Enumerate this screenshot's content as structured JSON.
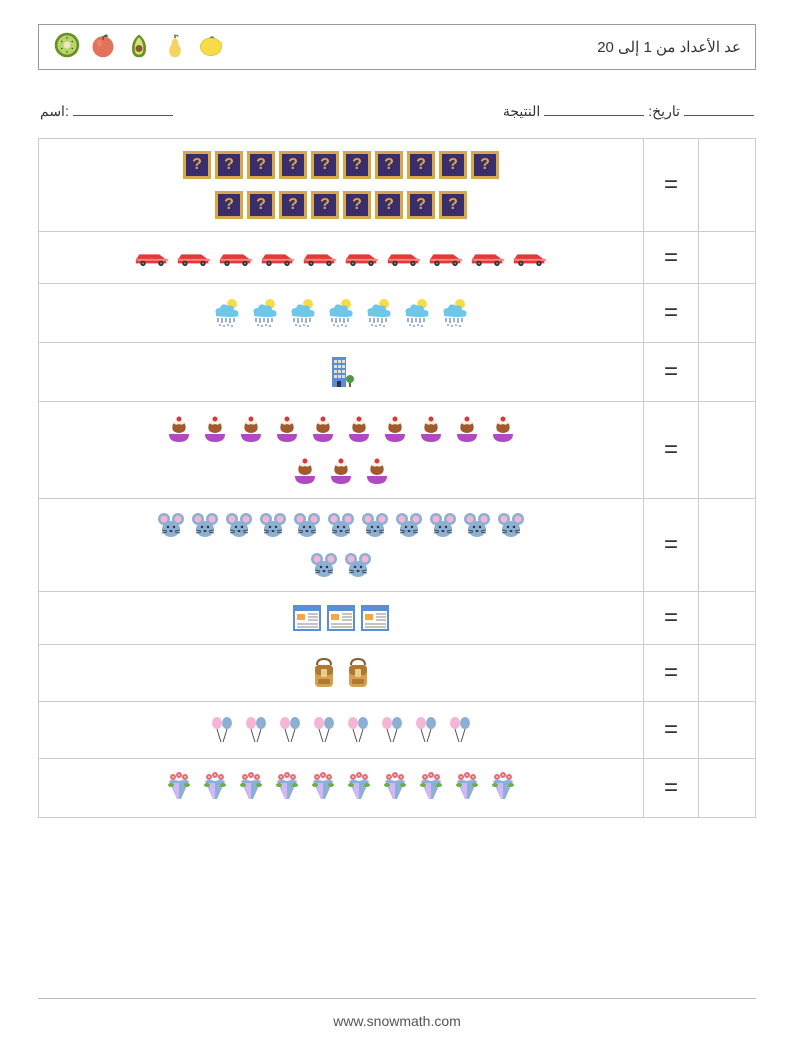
{
  "header": {
    "fruits": [
      "kiwi",
      "plum",
      "avocado",
      "pear",
      "lemon"
    ],
    "fruit_colors": {
      "kiwi_outer": "#6b8e23",
      "kiwi_inner": "#b5d56a",
      "kiwi_center": "#f0e6c0",
      "plum": "#e2725b",
      "plum_leaf": "#3a6b35",
      "avocado_outer": "#6b8e23",
      "avocado_inner": "#cde27a",
      "avocado_pit": "#8b5a2b",
      "pear": "#f4d35e",
      "pear_leaf": "#5a8a3a",
      "lemon": "#f7dc4a",
      "lemon_leaf": "#5a8a3a"
    },
    "title": "عد الأعداد من 1 إلى 20"
  },
  "meta": {
    "name_label": "اسم:",
    "score_label": "النتيجة",
    "date_label": ":تاريخ"
  },
  "equals_sign": "=",
  "rows": [
    {
      "icon": "qbox",
      "count": 18,
      "icon_label": "?"
    },
    {
      "icon": "car",
      "count": 10,
      "colors": {
        "body": "#e53935",
        "highlight": "#f28b82",
        "wheel": "#333"
      }
    },
    {
      "icon": "cloud",
      "count": 7,
      "colors": {
        "cloud": "#6ec6e8",
        "moon": "#f7dc4a",
        "rain": "#3a62a8"
      }
    },
    {
      "icon": "building",
      "count": 1,
      "colors": {
        "body": "#5a8fd6",
        "window": "#e8e0c0",
        "tree": "#4a9a4a",
        "trunk": "#8b5a2b"
      }
    },
    {
      "icon": "dessert",
      "count": 13,
      "colors": {
        "bowl": "#b04ac2",
        "scoop": "#a05a2b",
        "cream": "#f5f0e6",
        "cherry": "#d43a3a"
      }
    },
    {
      "icon": "mouse",
      "count": 13,
      "colors": {
        "body": "#8cb0d4",
        "ear": "#f5b5d4",
        "nose": "#333"
      }
    },
    {
      "icon": "calendar",
      "count": 3,
      "colors": {
        "frame": "#5a8fd6",
        "page": "#ffffff",
        "accent": "#f4a742",
        "line": "#888"
      }
    },
    {
      "icon": "backpack",
      "count": 2,
      "colors": {
        "body": "#d4a050",
        "flap": "#b07830",
        "strap": "#8b5a2b",
        "buckle": "#e8d088"
      }
    },
    {
      "icon": "balloons",
      "count": 8,
      "colors": {
        "b1": "#f5b5d4",
        "b2": "#8cb0d4",
        "string": "#555"
      }
    },
    {
      "icon": "flowers",
      "count": 10,
      "colors": {
        "petal": "#e56a8a",
        "center": "#f7dc4a",
        "leaf": "#6ab04a",
        "wrap": "#8cb0d4",
        "wrap2": "#d4b5f5"
      }
    }
  ],
  "footer": {
    "url": "www.snowmath.com"
  }
}
